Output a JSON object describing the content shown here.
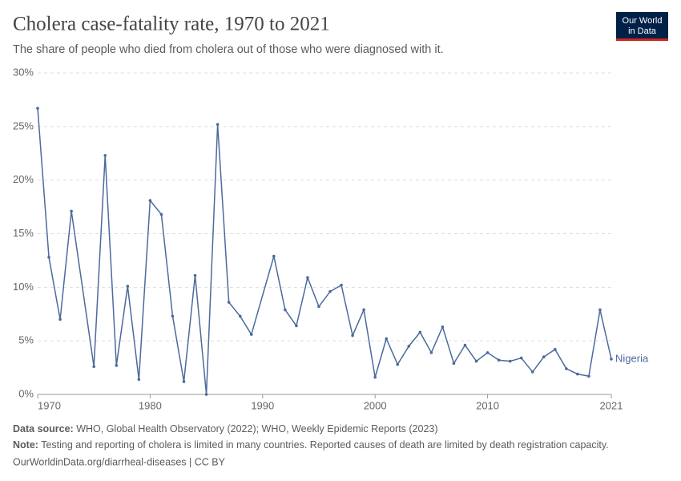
{
  "chart_data": {
    "type": "line",
    "title": "Cholera case-fatality rate, 1970 to 2021",
    "subtitle": "The share of people who died from cholera out of those who were diagnosed with it.",
    "logo": [
      "Our World",
      "in Data"
    ],
    "footer": {
      "source_label": "Data source:",
      "source": "WHO, Global Health Observatory (2022); WHO, Weekly Epidemic Reports (2023)",
      "note_label": "Note:",
      "note": "Testing and reporting of cholera is limited in many countries. Reported causes of death are limited by death registration capacity.",
      "url": "OurWorldinData.org/diarrheal-diseases | CC BY"
    },
    "x": [
      1970,
      1971,
      1972,
      1973,
      1975,
      1976,
      1977,
      1978,
      1979,
      1980,
      1981,
      1982,
      1983,
      1984,
      1985,
      1986,
      1987,
      1988,
      1989,
      1991,
      1992,
      1993,
      1994,
      1995,
      1996,
      1997,
      1998,
      1999,
      2000,
      2001,
      2002,
      2003,
      2004,
      2005,
      2006,
      2007,
      2008,
      2009,
      2010,
      2011,
      2012,
      2013,
      2014,
      2015,
      2016,
      2017,
      2018,
      2019,
      2020,
      2021
    ],
    "series": [
      {
        "name": "Nigeria",
        "color": "#4c6a9c",
        "values": [
          26.7,
          12.8,
          7.0,
          17.1,
          2.6,
          22.3,
          2.7,
          10.1,
          1.4,
          18.1,
          16.8,
          7.3,
          1.2,
          11.1,
          0,
          25.2,
          8.6,
          7.3,
          5.6,
          12.9,
          7.9,
          6.4,
          10.9,
          8.2,
          9.6,
          10.2,
          5.5,
          7.9,
          1.6,
          5.2,
          2.8,
          4.5,
          5.8,
          3.9,
          6.3,
          2.9,
          4.6,
          3.1,
          3.9,
          3.2,
          3.1,
          3.4,
          2.1,
          3.5,
          4.2,
          2.4,
          1.9,
          1.7,
          7.9,
          3.3
        ]
      }
    ],
    "xlim": [
      1970,
      2021
    ],
    "xticks": [
      1970,
      1980,
      1990,
      2000,
      2010,
      2021
    ],
    "ylim": [
      0,
      30
    ],
    "yticks": [
      {
        "value": 0,
        "label": "0%"
      },
      {
        "value": 5,
        "label": "5%"
      },
      {
        "value": 10,
        "label": "10%"
      },
      {
        "value": 15,
        "label": "15%"
      },
      {
        "value": 20,
        "label": "20%"
      },
      {
        "value": 25,
        "label": "25%"
      },
      {
        "value": 30,
        "label": "30%"
      }
    ],
    "grid": true
  }
}
